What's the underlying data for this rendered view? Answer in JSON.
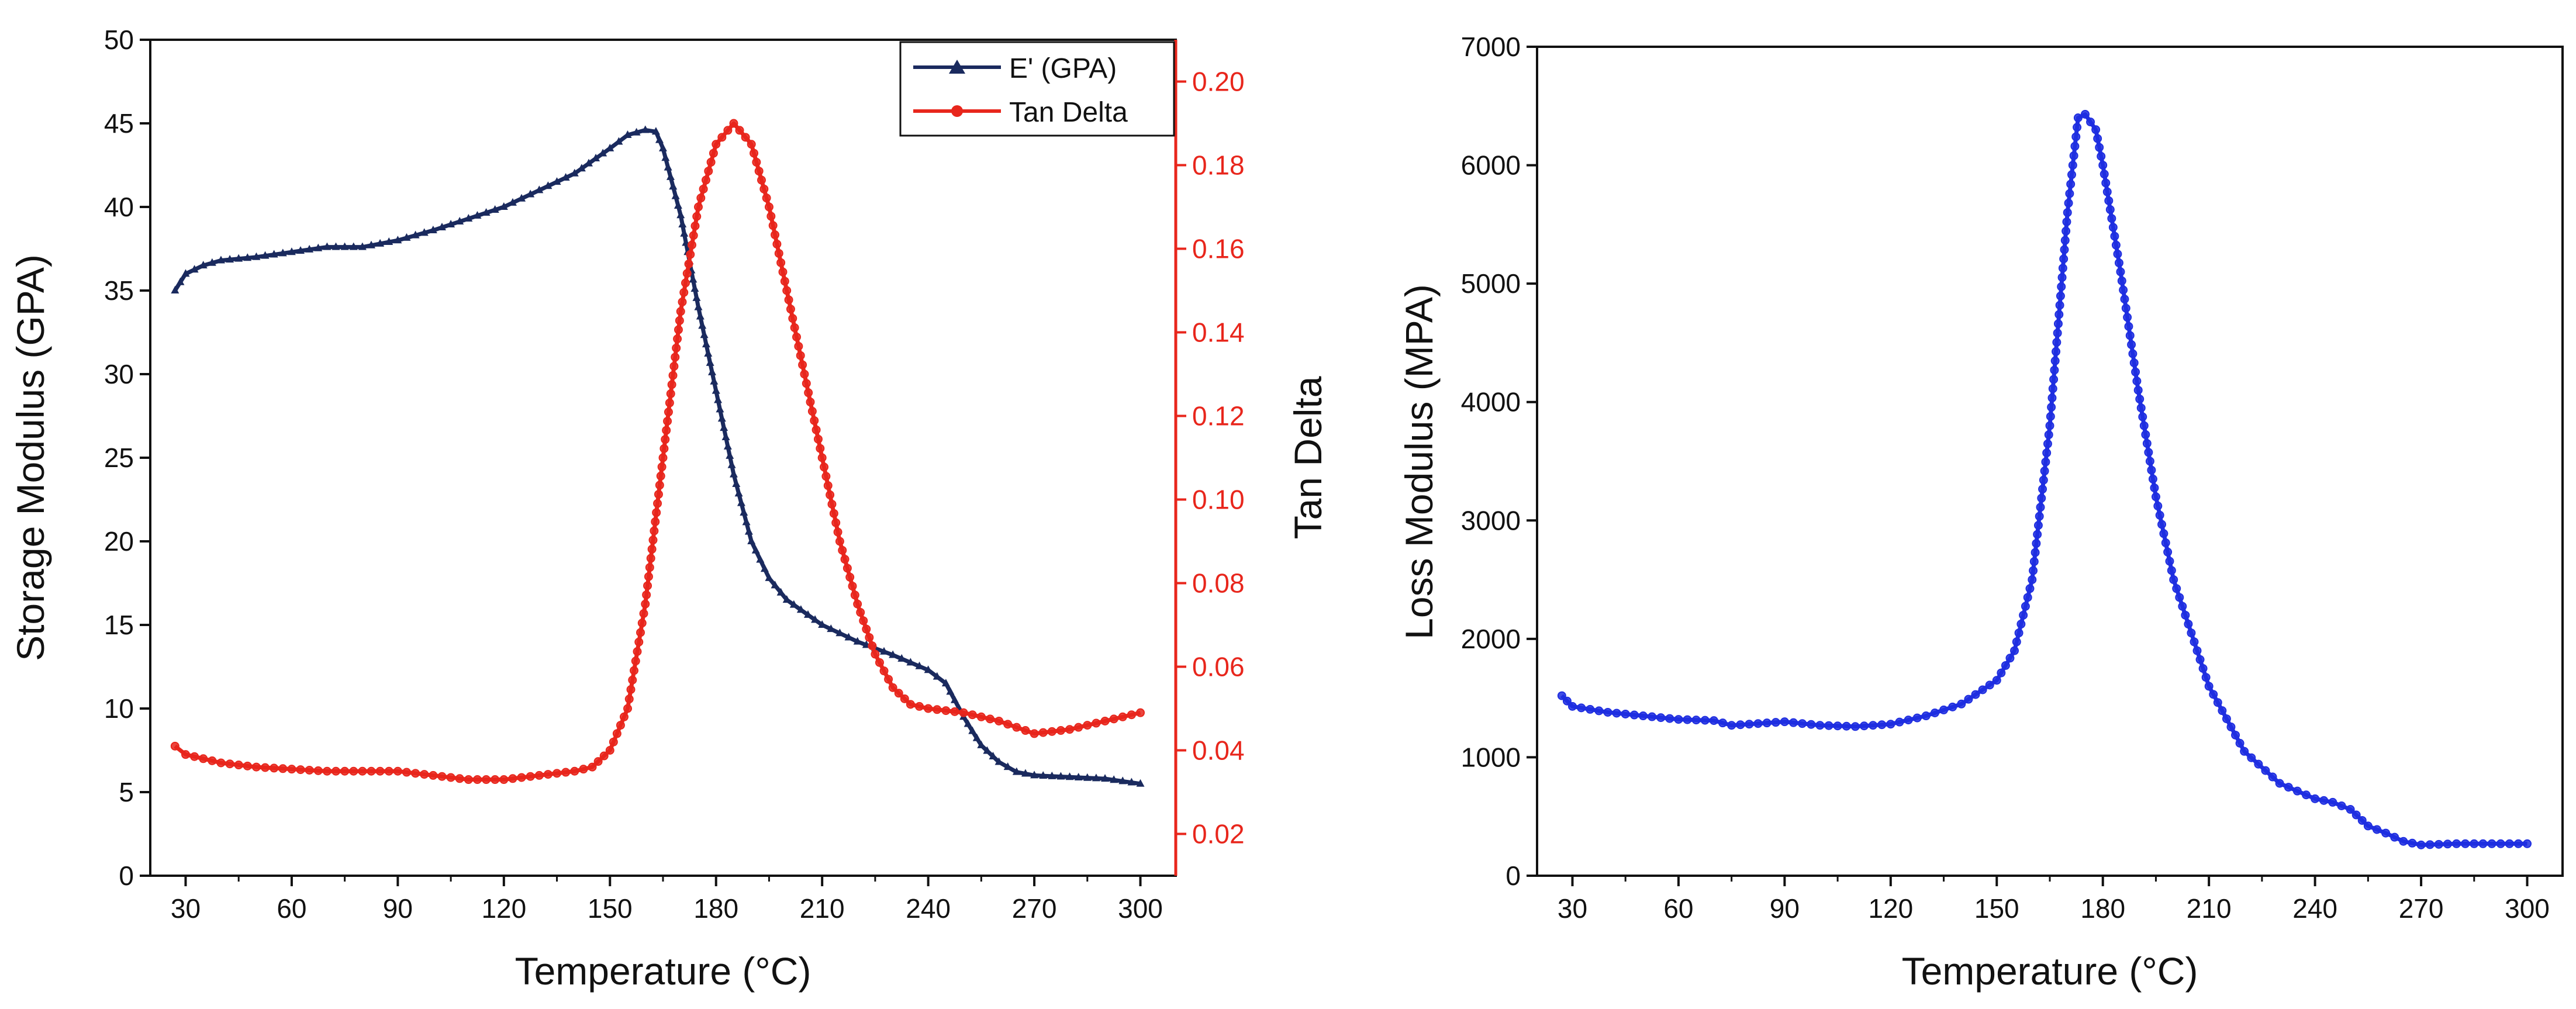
{
  "chart_data": [
    {
      "type": "line",
      "title": "",
      "xlabel": "Temperature (°C)",
      "ylabel": "Storage Modulus (GPA)",
      "y2label": "Tan Delta",
      "xlim": [
        20,
        310
      ],
      "ylim": [
        0,
        50
      ],
      "y2lim": [
        0.01,
        0.21
      ],
      "x_ticks": [
        30,
        60,
        90,
        120,
        150,
        180,
        210,
        240,
        270,
        300
      ],
      "y_ticks": [
        0,
        5,
        10,
        15,
        20,
        25,
        30,
        35,
        40,
        45,
        50
      ],
      "y2_ticks": [
        0.02,
        0.04,
        0.06,
        0.08,
        0.1,
        0.12,
        0.14,
        0.16,
        0.18,
        0.2
      ],
      "y2_tick_labels": [
        "0.02",
        "0.04",
        "0.06",
        "0.08",
        "0.10",
        "0.12",
        "0.14",
        "0.16",
        "0.18",
        "0.20"
      ],
      "legend_position": "top-right",
      "series": [
        {
          "name": "E' (GPA)",
          "axis": "left",
          "color": "#1a2a5e",
          "marker": "triangle",
          "x": [
            27,
            30,
            35,
            40,
            50,
            60,
            70,
            80,
            90,
            100,
            110,
            120,
            130,
            140,
            150,
            155,
            160,
            163,
            165,
            170,
            175,
            180,
            185,
            190,
            195,
            200,
            210,
            220,
            230,
            240,
            245,
            250,
            255,
            260,
            265,
            270,
            280,
            290,
            300
          ],
          "y": [
            35.0,
            36.0,
            36.5,
            36.8,
            37.0,
            37.3,
            37.6,
            37.6,
            38.0,
            38.6,
            39.3,
            40.0,
            41.0,
            42.0,
            43.5,
            44.3,
            44.6,
            44.5,
            43.5,
            39.5,
            34.0,
            29.0,
            24.0,
            20.0,
            17.8,
            16.5,
            15.0,
            14.0,
            13.2,
            12.3,
            11.5,
            9.5,
            7.8,
            6.8,
            6.2,
            6.0,
            5.9,
            5.8,
            5.5
          ]
        },
        {
          "name": "Tan Delta",
          "axis": "right",
          "color": "#e8261c",
          "marker": "circle",
          "x": [
            27,
            30,
            35,
            40,
            50,
            60,
            70,
            80,
            90,
            100,
            110,
            120,
            130,
            140,
            145,
            150,
            155,
            160,
            165,
            170,
            175,
            180,
            185,
            190,
            195,
            200,
            205,
            210,
            215,
            220,
            225,
            230,
            235,
            240,
            250,
            260,
            270,
            280,
            290,
            300
          ],
          "y": [
            0.041,
            0.039,
            0.038,
            0.037,
            0.036,
            0.0355,
            0.035,
            0.035,
            0.035,
            0.034,
            0.033,
            0.033,
            0.034,
            0.035,
            0.036,
            0.04,
            0.05,
            0.075,
            0.11,
            0.145,
            0.17,
            0.185,
            0.19,
            0.185,
            0.17,
            0.15,
            0.13,
            0.11,
            0.09,
            0.075,
            0.063,
            0.055,
            0.051,
            0.05,
            0.049,
            0.047,
            0.044,
            0.045,
            0.047,
            0.049
          ]
        }
      ]
    },
    {
      "type": "line",
      "title": "",
      "xlabel": "Temperature (°C)",
      "ylabel": "Loss Modulus (MPA)",
      "xlim": [
        20,
        310
      ],
      "ylim": [
        0,
        7000
      ],
      "x_ticks": [
        30,
        60,
        90,
        120,
        150,
        180,
        210,
        240,
        270,
        300
      ],
      "y_ticks": [
        0,
        1000,
        2000,
        3000,
        4000,
        5000,
        6000,
        7000
      ],
      "series": [
        {
          "name": "Loss Modulus",
          "axis": "left",
          "color": "#1f2ee0",
          "marker": "circle",
          "x": [
            27,
            30,
            40,
            50,
            60,
            70,
            75,
            80,
            90,
            100,
            110,
            120,
            130,
            140,
            150,
            155,
            160,
            165,
            170,
            173,
            175,
            178,
            180,
            185,
            190,
            195,
            200,
            210,
            220,
            230,
            240,
            245,
            250,
            255,
            260,
            265,
            270,
            280,
            290,
            300
          ],
          "y": [
            1520,
            1430,
            1380,
            1350,
            1320,
            1310,
            1270,
            1280,
            1300,
            1270,
            1260,
            1280,
            1350,
            1450,
            1650,
            1900,
            2500,
            3800,
            5600,
            6400,
            6430,
            6300,
            6000,
            5100,
            4100,
            3200,
            2500,
            1600,
            1050,
            780,
            650,
            620,
            560,
            420,
            360,
            290,
            260,
            270,
            270,
            270
          ]
        }
      ]
    }
  ]
}
